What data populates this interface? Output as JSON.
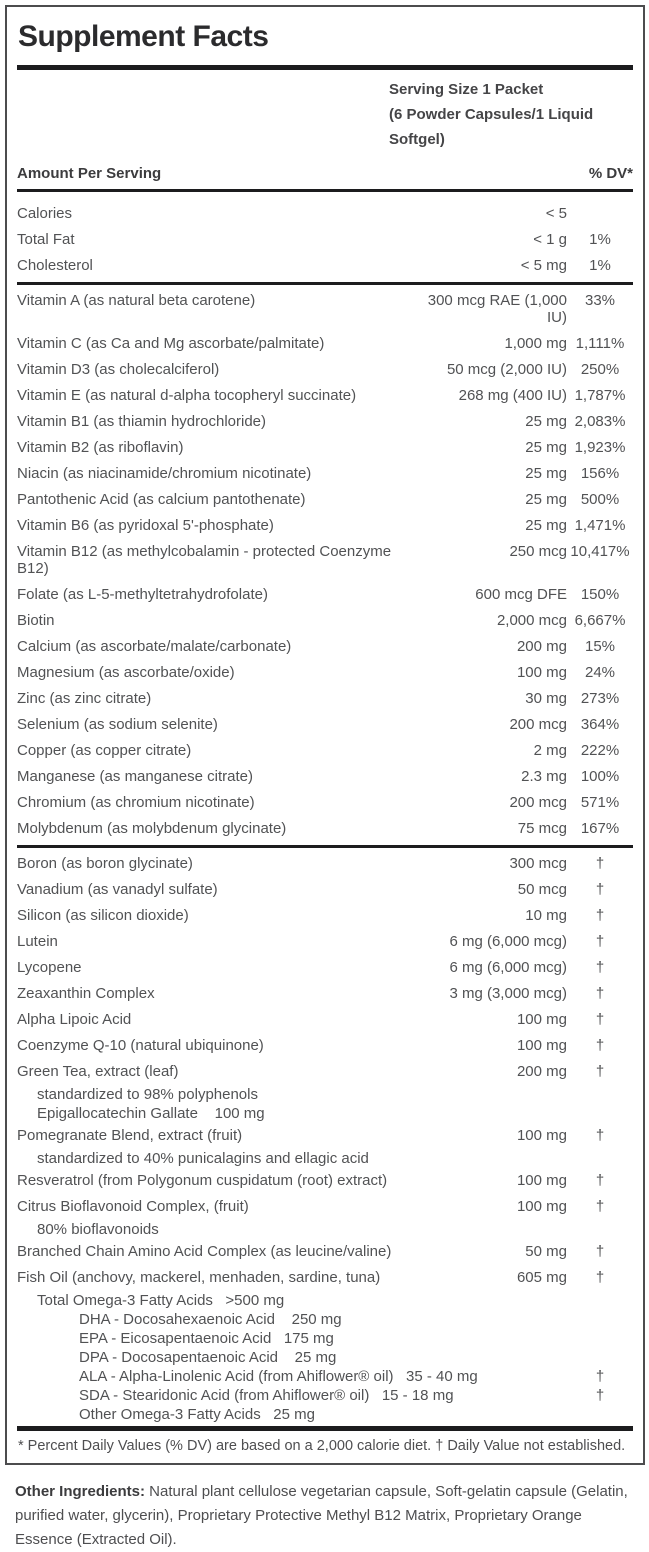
{
  "panel": {
    "title": "Supplement Facts",
    "serving_line1": "Serving Size 1 Packet",
    "serving_line2": "(6 Powder Capsules/1 Liquid Softgel)",
    "amount_header": "Amount Per Serving",
    "dv_header": "% DV*",
    "footnote": "* Percent Daily Values (% DV) are based on a 2,000 calorie diet. † Daily Value not established."
  },
  "sections": [
    {
      "rows": [
        {
          "name": "Calories",
          "amount": "< 5",
          "dv": ""
        },
        {
          "name": "Total Fat",
          "amount": "< 1 g",
          "dv": "1%"
        },
        {
          "name": "Cholesterol",
          "amount": "< 5 mg",
          "dv": "1%"
        }
      ]
    },
    {
      "rows": [
        {
          "name": "Vitamin A (as natural beta carotene)",
          "amount": "300 mcg RAE (1,000 IU)",
          "dv": "33%"
        },
        {
          "name": "Vitamin C (as Ca and Mg ascorbate/palmitate)",
          "amount": "1,000 mg",
          "dv": "1,111%"
        },
        {
          "name": "Vitamin D3 (as cholecalciferol)",
          "amount": "50 mcg (2,000 IU)",
          "dv": "250%"
        },
        {
          "name": "Vitamin E (as natural d-alpha tocopheryl succinate)",
          "amount": "268 mg (400 IU)",
          "dv": "1,787%"
        },
        {
          "name": "Vitamin B1 (as thiamin hydrochloride)",
          "amount": "25 mg",
          "dv": "2,083%"
        },
        {
          "name": "Vitamin B2 (as riboflavin)",
          "amount": "25 mg",
          "dv": "1,923%"
        },
        {
          "name": "Niacin (as niacinamide/chromium nicotinate)",
          "amount": "25 mg",
          "dv": "156%"
        },
        {
          "name": "Pantothenic Acid (as calcium pantothenate)",
          "amount": "25 mg",
          "dv": "500%"
        },
        {
          "name": "Vitamin B6 (as pyridoxal 5'-phosphate)",
          "amount": "25 mg",
          "dv": "1,471%"
        },
        {
          "name": "Vitamin B12 (as methylcobalamin - protected Coenzyme B12)",
          "amount": "250 mcg",
          "dv": "10,417%"
        },
        {
          "name": "Folate (as L-5-methyltetrahydrofolate)",
          "amount": "600 mcg DFE",
          "dv": "150%"
        },
        {
          "name": "Biotin",
          "amount": "2,000 mcg",
          "dv": "6,667%"
        },
        {
          "name": "Calcium (as ascorbate/malate/carbonate)",
          "amount": "200 mg",
          "dv": "15%"
        },
        {
          "name": "Magnesium (as ascorbate/oxide)",
          "amount": "100 mg",
          "dv": "24%"
        },
        {
          "name": "Zinc (as zinc citrate)",
          "amount": "30 mg",
          "dv": "273%"
        },
        {
          "name": "Selenium (as sodium selenite)",
          "amount": "200 mcg",
          "dv": "364%"
        },
        {
          "name": "Copper (as copper citrate)",
          "amount": "2 mg",
          "dv": "222%"
        },
        {
          "name": "Manganese (as manganese citrate)",
          "amount": "2.3 mg",
          "dv": "100%"
        },
        {
          "name": "Chromium (as chromium nicotinate)",
          "amount": "200 mcg",
          "dv": "571%"
        },
        {
          "name": "Molybdenum (as molybdenum glycinate)",
          "amount": "75 mcg",
          "dv": "167%"
        }
      ]
    },
    {
      "rows": [
        {
          "name": "Boron (as boron glycinate)",
          "amount": "300 mcg",
          "dv": "†"
        },
        {
          "name": "Vanadium (as vanadyl sulfate)",
          "amount": "50 mcg",
          "dv": "†"
        },
        {
          "name": "Silicon (as silicon dioxide)",
          "amount": "10 mg",
          "dv": "†"
        },
        {
          "name": "Lutein",
          "amount": "6 mg (6,000 mcg)",
          "dv": "†"
        },
        {
          "name": "Lycopene",
          "amount": "6 mg (6,000 mcg)",
          "dv": "†"
        },
        {
          "name": "Zeaxanthin Complex",
          "amount": "3 mg (3,000 mcg)",
          "dv": "†"
        },
        {
          "name": "Alpha Lipoic Acid",
          "amount": "100 mg",
          "dv": "†"
        },
        {
          "name": "Coenzyme Q-10 (natural ubiquinone)",
          "amount": "100 mg",
          "dv": "†"
        },
        {
          "name": "Green Tea, extract (leaf)",
          "amount": "200 mg",
          "dv": "†",
          "subs": [
            {
              "level": 1,
              "text": "standardized to 98% polyphenols",
              "dv": ""
            },
            {
              "level": 1,
              "text": "Epigallocatechin Gallate    100 mg",
              "dv": ""
            }
          ]
        },
        {
          "name": "Pomegranate Blend, extract (fruit)",
          "amount": "100 mg",
          "dv": "†",
          "subs": [
            {
              "level": 1,
              "text": "standardized to 40% punicalagins and ellagic acid",
              "dv": ""
            }
          ]
        },
        {
          "name": "Resveratrol (from Polygonum cuspidatum (root) extract)",
          "amount": "100 mg",
          "dv": "†"
        },
        {
          "name": "Citrus Bioflavonoid Complex, (fruit)",
          "amount": "100 mg",
          "dv": "†",
          "subs": [
            {
              "level": 1,
              "text": "80% bioflavonoids",
              "dv": ""
            }
          ]
        },
        {
          "name": "Branched Chain Amino Acid Complex (as leucine/valine)",
          "amount": "50 mg",
          "dv": "†"
        },
        {
          "name": "Fish Oil (anchovy, mackerel, menhaden, sardine, tuna)",
          "amount": "605 mg",
          "dv": "†",
          "subs": [
            {
              "level": 1,
              "text": "Total Omega-3 Fatty Acids   >500 mg",
              "dv": ""
            },
            {
              "level": 2,
              "text": "DHA - Docosahexaenoic Acid    250 mg",
              "dv": ""
            },
            {
              "level": 2,
              "text": "EPA - Eicosapentaenoic Acid   175 mg",
              "dv": ""
            },
            {
              "level": 2,
              "text": "DPA - Docosapentaenoic Acid    25 mg",
              "dv": ""
            },
            {
              "level": 2,
              "text": "ALA - Alpha-Linolenic Acid (from Ahiflower® oil)   35 - 40 mg",
              "dv": "†"
            },
            {
              "level": 2,
              "text": "SDA - Stearidonic Acid (from Ahiflower® oil)   15 - 18 mg",
              "dv": "†"
            },
            {
              "level": 2,
              "text": "Other Omega-3 Fatty Acids   25 mg",
              "dv": ""
            }
          ]
        }
      ]
    }
  ],
  "other_ingredients": {
    "label": "Other Ingredients:",
    "text": " Natural plant cellulose vegetarian capsule, Soft-gelatin capsule (Gelatin, purified water, glycerin), Proprietary Protective Methyl B12 Matrix, Proprietary Orange Essence (Extracted Oil)."
  }
}
